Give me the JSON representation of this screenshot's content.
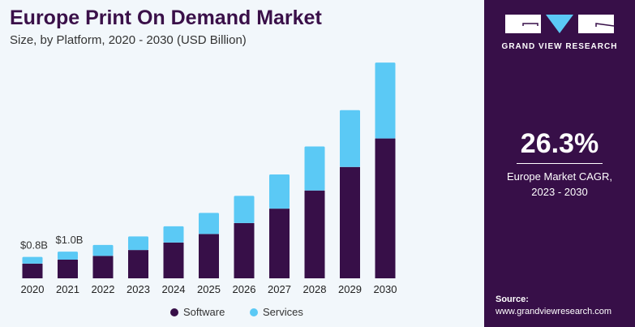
{
  "header": {
    "title": "Europe Print On Demand Market",
    "subtitle": "Size, by Platform, 2020 - 2030 (USD Billion)"
  },
  "side": {
    "brand": "GRAND VIEW RESEARCH",
    "cagr_value": "26.3%",
    "cagr_label_1": "Europe Market CAGR,",
    "cagr_label_2": "2023 - 2030",
    "source_label": "Source:",
    "source_url": "www.grandviewresearch.com"
  },
  "colors": {
    "software": "#370f48",
    "services": "#5bc9f5",
    "panel": "#370f48"
  },
  "chart_data": {
    "type": "bar",
    "stacked": true,
    "title": "Europe Print On Demand Market",
    "subtitle": "Size, by Platform, 2020 - 2030 (USD Billion)",
    "categories": [
      "2020",
      "2021",
      "2022",
      "2023",
      "2024",
      "2025",
      "2026",
      "2027",
      "2028",
      "2029",
      "2030"
    ],
    "series": [
      {
        "name": "Software",
        "values": [
          0.55,
          0.7,
          0.84,
          1.06,
          1.34,
          1.66,
          2.07,
          2.61,
          3.29,
          4.17,
          5.24
        ]
      },
      {
        "name": "Services",
        "values": [
          0.25,
          0.3,
          0.41,
          0.51,
          0.61,
          0.79,
          1.02,
          1.28,
          1.65,
          2.13,
          2.84
        ]
      }
    ],
    "data_labels": [
      {
        "category": "2020",
        "text": "$0.8B"
      },
      {
        "category": "2021",
        "text": "$1.0B"
      }
    ],
    "ylim": [
      0,
      8.5
    ],
    "grid": false,
    "legend": "bottom"
  }
}
